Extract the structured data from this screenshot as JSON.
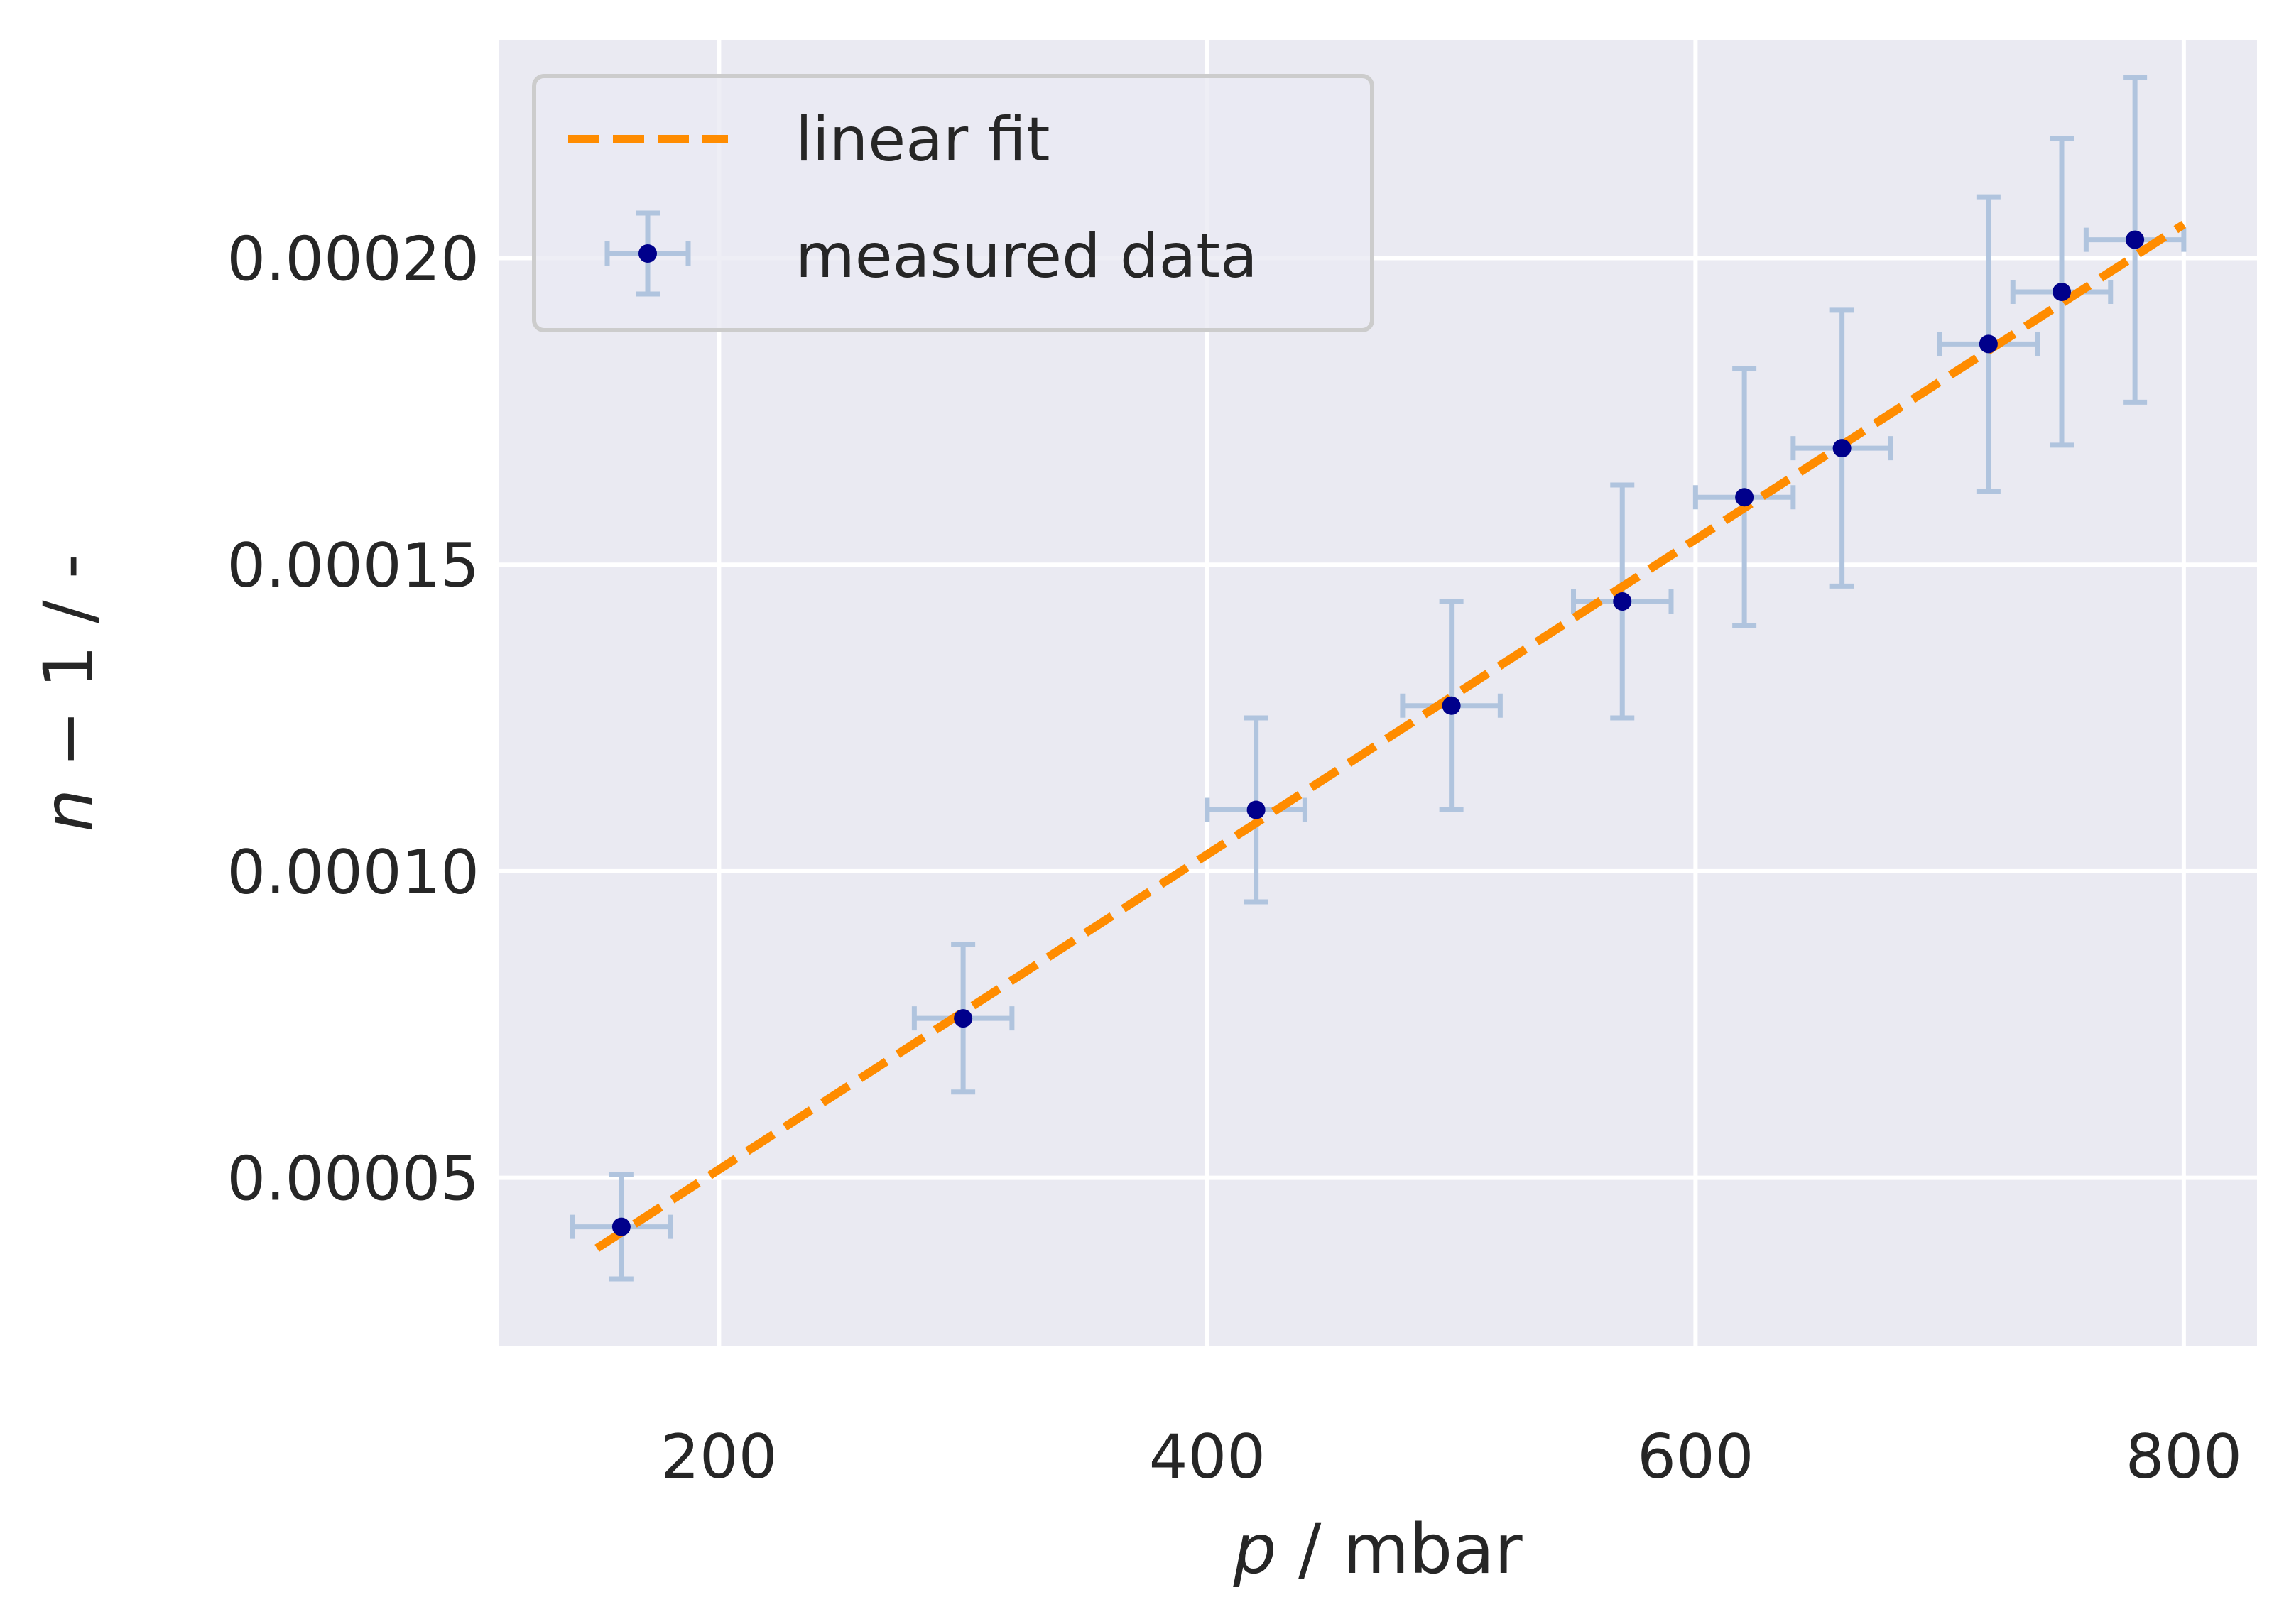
{
  "chart_data": {
    "type": "scatter",
    "xlabel": {
      "var": "p",
      "unit": " / mbar"
    },
    "ylabel": {
      "var": "n",
      "rest": " − 1 / -"
    },
    "xlim": [
      110,
      830
    ],
    "ylim": [
      2.25e-05,
      0.0002355
    ],
    "x_ticks": [
      200,
      400,
      600,
      800
    ],
    "x_tick_labels": [
      "200",
      "400",
      "600",
      "800"
    ],
    "y_ticks": [
      5e-05,
      0.0001,
      0.00015,
      0.0002
    ],
    "y_tick_labels": [
      "0.00005",
      "0.00010",
      "0.00015",
      "0.00020"
    ],
    "grid": true,
    "legend_position": "top-left",
    "colors": {
      "background": "#eaeaf2",
      "grid": "#ffffff",
      "fit": "#ff8c00",
      "points": "#00008b",
      "errorbars": "#b0c4de"
    },
    "series": [
      {
        "name": "measured data",
        "kind": "errorbar",
        "points": [
          {
            "x": 160,
            "y": 4.2e-05,
            "xerr": 20,
            "yerr": 8.5e-06
          },
          {
            "x": 300,
            "y": 7.6e-05,
            "xerr": 20,
            "yerr": 1.2e-05
          },
          {
            "x": 420,
            "y": 0.00011,
            "xerr": 20,
            "yerr": 1.5e-05
          },
          {
            "x": 500,
            "y": 0.000127,
            "xerr": 20,
            "yerr": 1.7e-05
          },
          {
            "x": 570,
            "y": 0.000144,
            "xerr": 20,
            "yerr": 1.9e-05
          },
          {
            "x": 620,
            "y": 0.000161,
            "xerr": 20,
            "yerr": 2.1e-05
          },
          {
            "x": 660,
            "y": 0.000169,
            "xerr": 20,
            "yerr": 2.25e-05
          },
          {
            "x": 720,
            "y": 0.000186,
            "xerr": 20,
            "yerr": 2.4e-05
          },
          {
            "x": 750,
            "y": 0.0001945,
            "xerr": 20,
            "yerr": 2.5e-05
          },
          {
            "x": 780,
            "y": 0.000203,
            "xerr": 20,
            "yerr": 2.65e-05
          }
        ]
      },
      {
        "name": "linear fit",
        "kind": "line",
        "style": "dashed",
        "x": [
          150,
          800
        ],
        "y": [
          3.85e-05,
          0.0002055
        ]
      }
    ]
  }
}
